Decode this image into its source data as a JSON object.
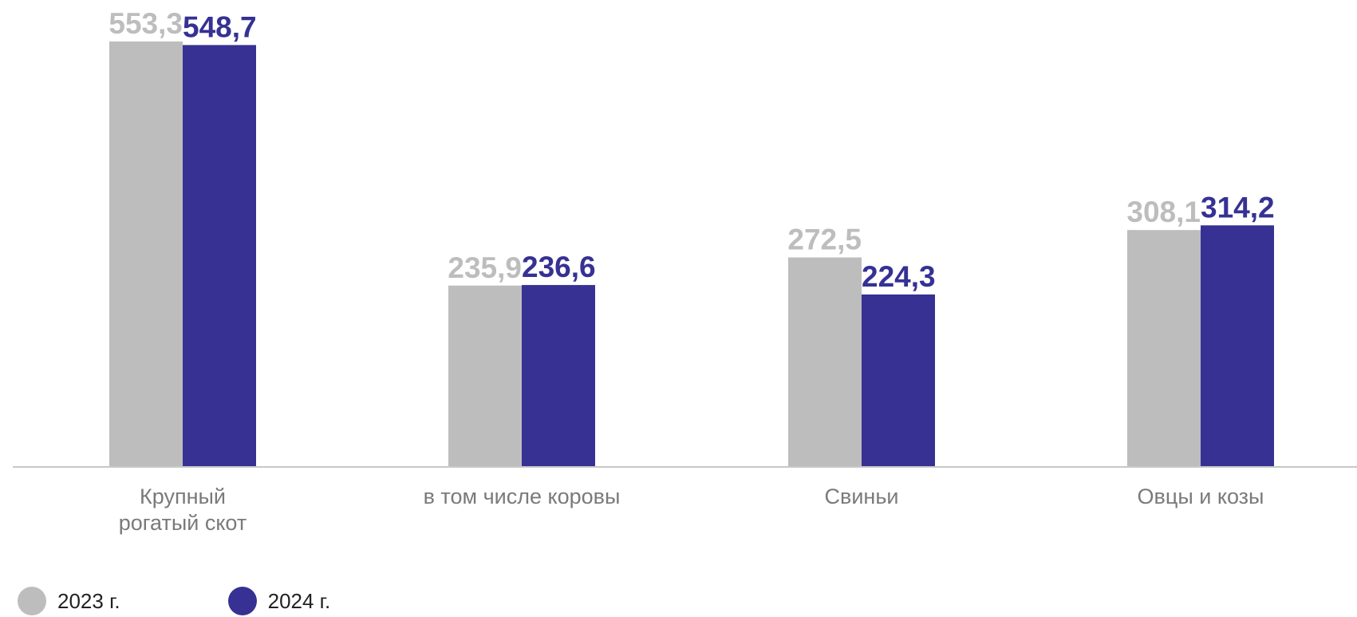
{
  "chart_data": {
    "type": "bar",
    "categories": [
      "Крупный рогатый скот",
      "в том числе коровы",
      "Свиньи",
      "Овцы и козы"
    ],
    "category_lines": [
      [
        "Крупный",
        "рогатый скот"
      ],
      [
        "в том числе коровы"
      ],
      [
        "Свиньи"
      ],
      [
        "Овцы и козы"
      ]
    ],
    "series": [
      {
        "name": "2023 г.",
        "color": "#bdbdbd",
        "label_color": "#bdbdbd",
        "values": [
          553.3,
          235.9,
          272.5,
          308.1
        ],
        "labels": [
          "553,3",
          "235,9",
          "272,5",
          "308,1"
        ]
      },
      {
        "name": "2024 г.",
        "color": "#363193",
        "label_color": "#363193",
        "values": [
          548.7,
          236.6,
          224.3,
          314.2
        ],
        "labels": [
          "548,7",
          "236,6",
          "224,3",
          "314,2"
        ]
      }
    ],
    "title": "",
    "xlabel": "",
    "ylabel": "",
    "ylim": [
      0,
      553.3
    ],
    "grid": false,
    "legend_position": "bottom-left"
  }
}
